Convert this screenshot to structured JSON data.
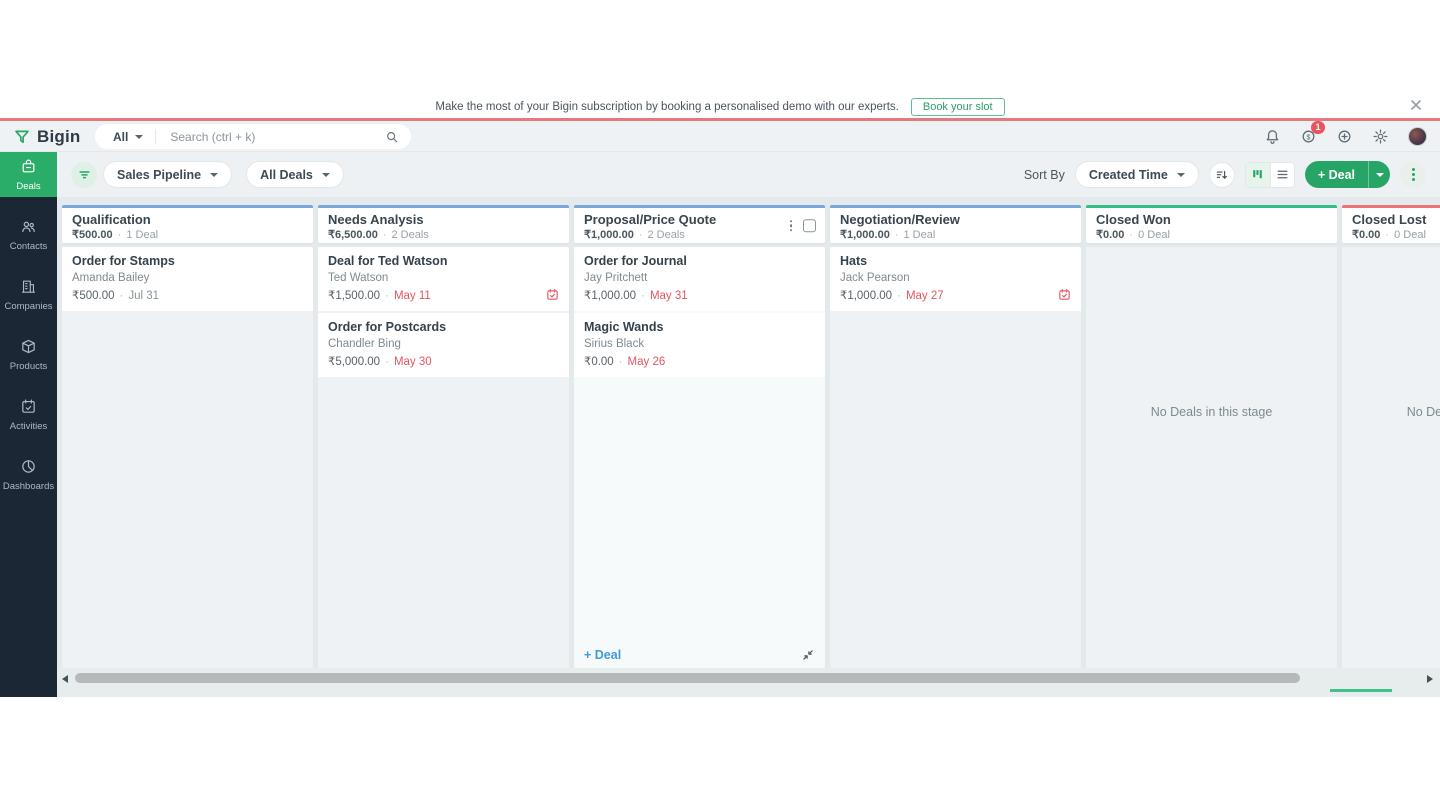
{
  "banner": {
    "message": "Make the most of your Bigin subscription by booking a personalised demo with our experts.",
    "cta_label": "Book your slot"
  },
  "header": {
    "brand": "Bigin",
    "search_scope": "All",
    "search_placeholder": "Search (ctrl + k)",
    "notification_count": "1"
  },
  "sidebar": {
    "items": [
      {
        "label": "Deals",
        "icon": "deals-icon",
        "active": true
      },
      {
        "label": "Contacts",
        "icon": "contacts-icon",
        "active": false
      },
      {
        "label": "Companies",
        "icon": "companies-icon",
        "active": false
      },
      {
        "label": "Products",
        "icon": "products-icon",
        "active": false
      },
      {
        "label": "Activities",
        "icon": "activities-icon",
        "active": false
      },
      {
        "label": "Dashboards",
        "icon": "dashboards-icon",
        "active": false
      }
    ]
  },
  "toolbar": {
    "pipeline_selector": "Sales Pipeline",
    "deals_filter": "All Deals",
    "sort_by_label": "Sort By",
    "sort_value": "Created Time",
    "new_deal_label": "+ Deal"
  },
  "board": {
    "empty_stage_text": "No Deals in this stage",
    "add_deal_label": "+ Deal",
    "accent_colors": {
      "open": "#74a9d8",
      "won": "#35bd88",
      "lost": "#ec7378"
    },
    "columns": [
      {
        "name": "Qualification",
        "amount": "₹500.00",
        "count": "1 Deal",
        "accent": "open",
        "hovered": false,
        "cards": [
          {
            "title": "Order for Stamps",
            "contact": "Amanda Bailey",
            "amount": "₹500.00",
            "date": "Jul 31",
            "overdue": false,
            "calendar_icon": false
          }
        ]
      },
      {
        "name": "Needs Analysis",
        "amount": "₹6,500.00",
        "count": "2 Deals",
        "accent": "open",
        "hovered": false,
        "cards": [
          {
            "title": "Deal for Ted Watson",
            "contact": "Ted Watson",
            "amount": "₹1,500.00",
            "date": "May 11",
            "overdue": true,
            "calendar_icon": true
          },
          {
            "title": "Order for Postcards",
            "contact": "Chandler Bing",
            "amount": "₹5,000.00",
            "date": "May 30",
            "overdue": true,
            "calendar_icon": false
          }
        ]
      },
      {
        "name": "Proposal/Price Quote",
        "amount": "₹1,000.00",
        "count": "2 Deals",
        "accent": "open",
        "hovered": true,
        "cards": [
          {
            "title": "Order for Journal",
            "contact": "Jay Pritchett",
            "amount": "₹1,000.00",
            "date": "May 31",
            "overdue": true,
            "calendar_icon": false
          },
          {
            "title": "Magic Wands",
            "contact": "Sirius Black",
            "amount": "₹0.00",
            "date": "May 26",
            "overdue": true,
            "calendar_icon": false
          }
        ]
      },
      {
        "name": "Negotiation/Review",
        "amount": "₹1,000.00",
        "count": "1 Deal",
        "accent": "open",
        "hovered": false,
        "cards": [
          {
            "title": "Hats",
            "contact": "Jack Pearson",
            "amount": "₹1,000.00",
            "date": "May 27",
            "overdue": true,
            "calendar_icon": true
          }
        ]
      },
      {
        "name": "Closed Won",
        "amount": "₹0.00",
        "count": "0 Deal",
        "accent": "won",
        "hovered": false,
        "cards": []
      },
      {
        "name": "Closed Lost",
        "amount": "₹0.00",
        "count": "0 Deal",
        "accent": "lost",
        "hovered": false,
        "cards": []
      }
    ]
  }
}
